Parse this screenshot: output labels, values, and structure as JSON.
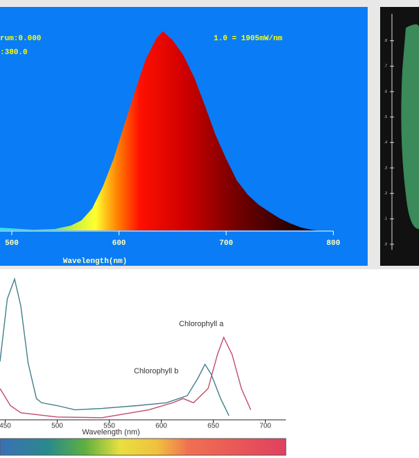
{
  "chart_data": [
    {
      "type": "area",
      "annotations": [
        "rum:0.000",
        ":380.0",
        "1.0 = 1905mW/nm"
      ],
      "x_label": "Wavelength(nm)",
      "xlim": [
        489,
        832
      ],
      "xticks": [
        500,
        600,
        700,
        800
      ],
      "ylim": [
        0,
        1
      ],
      "x": [
        489,
        520,
        540,
        555,
        565,
        575,
        585,
        595,
        605,
        615,
        625,
        635,
        641,
        650,
        660,
        670,
        680,
        690,
        700,
        710,
        720,
        730,
        740,
        750,
        760,
        770,
        780,
        785
      ],
      "values": [
        0.014,
        0.003,
        0.007,
        0.024,
        0.05,
        0.11,
        0.22,
        0.36,
        0.53,
        0.7,
        0.86,
        0.965,
        1.0,
        0.955,
        0.88,
        0.77,
        0.63,
        0.48,
        0.36,
        0.25,
        0.18,
        0.13,
        0.094,
        0.06,
        0.035,
        0.014,
        0.003,
        0
      ]
    },
    {
      "type": "cie",
      "ylim": [
        0,
        0.9
      ],
      "yticks": [
        {
          "value": 0,
          "label": ".0"
        },
        {
          "value": 0.1,
          "label": ".1"
        },
        {
          "value": 0.2,
          "label": ".2"
        },
        {
          "value": 0.3,
          "label": ".3"
        },
        {
          "value": 0.4,
          "label": ".4"
        },
        {
          "value": 0.5,
          "label": ".5"
        },
        {
          "value": 0.6,
          "label": ".6"
        },
        {
          "value": 0.7,
          "label": ".7"
        },
        {
          "value": 0.8,
          "label": ".8"
        }
      ]
    },
    {
      "type": "line",
      "x_label": "Wavelength (nm)",
      "xlim": [
        445,
        719
      ],
      "xticks": [
        450,
        500,
        550,
        600,
        650,
        700
      ],
      "ylim": [
        0,
        1
      ],
      "annotations": [
        "Chlorophyll a",
        "Chlorophyll b"
      ],
      "series": [
        {
          "name": "Chlorophyll b",
          "color": "#3f7f8c",
          "x": [
            445,
            452,
            459,
            465,
            472,
            480,
            485,
            500,
            517,
            543,
            577,
            605,
            625,
            635,
            642,
            648,
            657,
            665
          ],
          "values": [
            0.41,
            0.85,
            0.99,
            0.8,
            0.4,
            0.15,
            0.12,
            0.1,
            0.07,
            0.08,
            0.1,
            0.12,
            0.17,
            0.29,
            0.39,
            0.32,
            0.15,
            0.03
          ]
        },
        {
          "name": "Chlorophyll a",
          "color": "#c24a6c",
          "x": [
            445,
            455,
            465,
            500,
            543,
            588,
            611,
            621,
            631,
            645,
            654,
            660,
            668,
            677,
            686
          ],
          "values": [
            0.22,
            0.1,
            0.05,
            0.02,
            0.015,
            0.07,
            0.12,
            0.15,
            0.12,
            0.22,
            0.46,
            0.58,
            0.46,
            0.22,
            0.07
          ]
        }
      ]
    }
  ],
  "color_bar": [
    "Blue",
    "Green",
    "Yellow",
    "Orange",
    "Red"
  ]
}
